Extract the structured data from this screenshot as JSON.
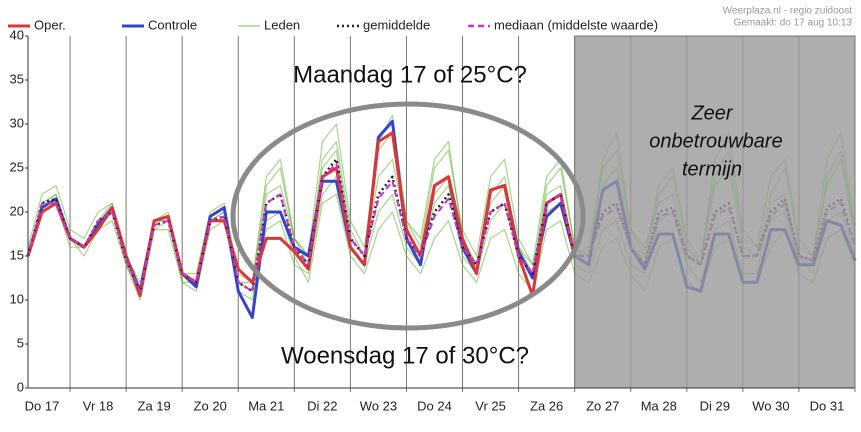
{
  "chart_data": {
    "type": "line",
    "source": "Weerplaza.nl - regio zuidoost",
    "created": "Gemaakt: do 17 aug 10:13",
    "annotations": [
      "Maandag 17 of 25°C?",
      "Woensdag 17 of 30°C?",
      "Zeer",
      "onbetrouwbare",
      "termijn"
    ],
    "x": [
      6,
      12,
      18,
      24,
      30,
      36,
      42,
      48,
      54,
      60,
      66,
      72,
      78,
      84,
      90,
      96,
      102,
      108,
      114,
      120,
      126,
      132,
      138,
      144,
      150,
      156,
      162,
      168,
      174,
      180,
      186,
      192,
      198,
      204,
      210,
      216,
      222,
      228,
      234,
      240,
      246,
      252,
      258,
      264,
      270,
      276,
      282,
      288,
      294,
      300,
      306,
      312,
      318,
      324,
      330,
      336,
      342,
      348,
      354,
      360
    ],
    "xlim": [
      6,
      360
    ],
    "xticks": [
      {
        "value": 12,
        "label": "Do 17"
      },
      {
        "value": 36,
        "label": "Vr 18"
      },
      {
        "value": 60,
        "label": "Za 19"
      },
      {
        "value": 84,
        "label": "Zo 20"
      },
      {
        "value": 108,
        "label": "Ma 21"
      },
      {
        "value": 132,
        "label": "Di 22"
      },
      {
        "value": 156,
        "label": "Wo 23"
      },
      {
        "value": 180,
        "label": "Do 24"
      },
      {
        "value": 204,
        "label": "Vr 25"
      },
      {
        "value": 228,
        "label": "Za 26"
      },
      {
        "value": 252,
        "label": "Zo 27"
      },
      {
        "value": 276,
        "label": "Ma 28"
      },
      {
        "value": 300,
        "label": "Di 29"
      },
      {
        "value": 324,
        "label": "Wo 30"
      },
      {
        "value": 348,
        "label": "Do 31"
      }
    ],
    "ylim": [
      0,
      40
    ],
    "yticks": [
      0,
      5,
      10,
      15,
      20,
      25,
      30,
      35,
      40
    ],
    "shade_from": 240,
    "series": [
      {
        "name": "Oper.",
        "color": "#e03535",
        "values": [
          15,
          20,
          21,
          17,
          16,
          18,
          20.5,
          15,
          10.5,
          19,
          19.5,
          13,
          12,
          19,
          19,
          13.5,
          12,
          17,
          17,
          15.5,
          13.5,
          24,
          25,
          16,
          14,
          28,
          29,
          18,
          15,
          23,
          24,
          17,
          13,
          22.5,
          23,
          15,
          10.5,
          21,
          22,
          15,
          null,
          null,
          null,
          null,
          null,
          null,
          null,
          null,
          null,
          null,
          null,
          null,
          null,
          null,
          null,
          null,
          null,
          null,
          null,
          null
        ]
      },
      {
        "name": "Controle",
        "color": "#3344cc",
        "values": [
          15,
          20.5,
          21.5,
          17,
          16,
          18.5,
          20.5,
          15,
          11,
          19,
          19.5,
          13,
          11.5,
          19.5,
          20.5,
          11,
          8,
          20,
          20,
          16,
          15,
          23.5,
          23.5,
          16,
          14,
          28.5,
          30.3,
          17,
          14,
          23,
          24,
          16,
          13,
          22.5,
          23,
          15.5,
          12.5,
          19.5,
          21,
          15,
          14,
          22.5,
          23.5,
          16,
          13.5,
          17.5,
          17.5,
          11.5,
          11,
          17.5,
          17.5,
          12,
          12,
          18,
          18,
          14,
          14,
          19,
          18.5,
          14.5
        ]
      },
      {
        "name": "Leden",
        "color": "#5cb030",
        "members": [
          [
            15,
            21,
            22,
            17,
            16,
            19,
            21,
            15,
            11,
            19,
            20,
            13,
            12,
            19,
            20,
            12,
            11,
            22,
            23,
            17,
            14,
            26,
            28,
            18,
            15,
            24,
            26,
            18,
            15,
            22,
            24,
            17,
            14,
            22,
            24,
            16,
            13,
            23,
            25,
            16,
            15,
            23,
            25,
            17,
            14,
            22,
            24,
            16,
            14,
            23,
            25,
            16,
            15,
            22,
            25,
            16,
            15,
            23,
            26,
            17
          ],
          [
            15,
            20,
            21,
            16,
            16,
            18,
            19,
            14,
            10,
            18,
            18,
            12,
            11,
            18,
            19,
            11,
            10,
            19,
            20,
            15,
            12,
            21,
            22,
            15,
            13,
            18,
            20,
            15,
            13,
            17,
            19,
            14,
            12,
            17,
            18,
            13,
            11,
            18,
            19,
            13,
            12,
            16,
            17,
            13,
            11,
            16,
            17,
            12,
            11,
            16,
            17,
            12,
            12,
            16,
            18,
            13,
            12,
            17,
            18,
            14
          ],
          [
            16,
            22,
            23,
            18,
            17,
            20,
            21,
            15,
            12,
            19,
            19,
            13,
            13,
            20,
            21,
            13,
            12,
            23,
            25,
            17,
            15,
            28,
            30,
            19,
            16,
            27,
            29,
            19,
            16,
            25,
            27,
            18,
            15,
            24,
            26,
            17,
            14,
            20,
            21,
            15,
            16,
            25,
            27,
            18,
            16,
            21,
            22,
            15,
            15,
            24,
            27,
            17,
            16,
            19,
            20,
            14,
            14,
            24,
            27,
            18
          ],
          [
            15,
            21,
            21,
            17,
            15,
            18,
            20,
            14,
            11,
            19,
            19,
            12,
            12,
            19,
            19,
            12,
            11,
            18,
            19,
            14,
            13,
            22,
            24,
            16,
            14,
            20,
            22,
            16,
            14,
            21,
            23,
            15,
            13,
            19,
            21,
            15,
            13,
            22,
            23,
            14,
            13,
            18,
            19,
            14,
            13,
            19,
            20,
            14,
            12,
            18,
            19,
            13,
            13,
            21,
            22,
            15,
            13,
            19,
            20,
            15
          ],
          [
            15,
            21,
            22,
            17,
            16,
            19,
            20,
            15,
            11,
            18,
            19,
            13,
            12,
            19,
            20,
            12,
            12,
            24,
            26,
            17,
            15,
            25,
            27,
            17,
            15,
            28,
            31,
            19,
            17,
            26,
            28,
            17,
            14,
            21,
            23,
            16,
            14,
            24,
            26,
            16,
            14,
            26,
            29,
            18,
            15,
            23,
            25,
            17,
            14,
            26,
            29,
            18,
            16,
            24,
            26,
            17,
            15,
            26,
            29,
            18
          ]
        ]
      },
      {
        "name": "gemiddelde",
        "color": "#222222",
        "style": "dotted",
        "values": [
          15,
          21,
          21.5,
          17,
          16,
          19,
          20,
          14.5,
          11,
          18.5,
          19,
          13,
          12,
          19,
          19.5,
          12,
          11,
          21,
          22,
          16,
          14,
          24,
          26,
          17,
          15,
          22,
          24,
          17,
          15,
          20,
          22,
          16,
          14,
          20,
          21,
          15,
          13,
          21,
          22,
          15,
          15,
          20,
          21,
          16,
          14,
          20,
          20.5,
          15,
          14,
          20,
          21,
          15,
          15,
          20,
          21.5,
          15,
          14.5,
          20.5,
          21.5,
          16
        ]
      },
      {
        "name": "mediaan (middelste waarde)",
        "color": "#cc33cc",
        "style": "dashed",
        "values": [
          15,
          21,
          21,
          17,
          16,
          19,
          20,
          14.5,
          11,
          18.5,
          19,
          13,
          12,
          19,
          19.5,
          12,
          11,
          21,
          22,
          16,
          14,
          24,
          25.5,
          17,
          15,
          21.5,
          23.5,
          17,
          15,
          19.5,
          21.5,
          16,
          14,
          20,
          21,
          15,
          13,
          21,
          22,
          15,
          15,
          19.5,
          20.5,
          16,
          14,
          19.5,
          20,
          15,
          14,
          19.5,
          20.5,
          15,
          15,
          19.5,
          21,
          15,
          14.5,
          20,
          21,
          16
        ]
      }
    ]
  }
}
